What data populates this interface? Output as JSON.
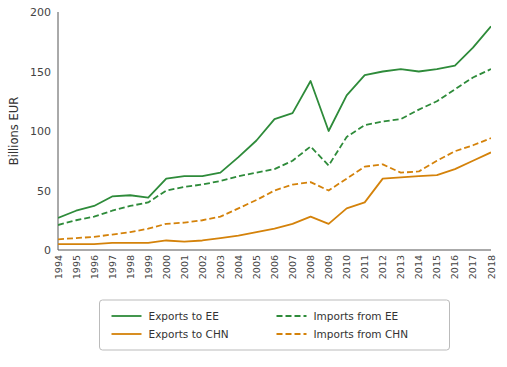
{
  "chart_data": {
    "type": "line",
    "ylabel": "Billions EUR",
    "x": [
      1994,
      1995,
      1996,
      1997,
      1998,
      1999,
      2000,
      2001,
      2002,
      2003,
      2004,
      2005,
      2006,
      2007,
      2008,
      2009,
      2010,
      2011,
      2012,
      2013,
      2014,
      2015,
      2016,
      2017,
      2018
    ],
    "xlim": [
      1994,
      2018
    ],
    "xticks": [
      1994,
      1995,
      1996,
      1997,
      1998,
      1999,
      2000,
      2001,
      2002,
      2003,
      2004,
      2005,
      2006,
      2007,
      2008,
      2009,
      2010,
      2011,
      2012,
      2013,
      2014,
      2015,
      2016,
      2017,
      2018
    ],
    "ylim": [
      0,
      200
    ],
    "yticks": [
      0,
      50,
      100,
      150,
      200
    ],
    "grid": false,
    "legend": "bottom",
    "series": [
      {
        "name": "Exports to EE",
        "color": "#2e8b3a",
        "line_style": "solid",
        "values": [
          27,
          33,
          37,
          45,
          46,
          44,
          60,
          62,
          62,
          65,
          78,
          92,
          110,
          115,
          142,
          100,
          130,
          147,
          150,
          152,
          150,
          152,
          155,
          170,
          188
        ]
      },
      {
        "name": "Imports from EE",
        "color": "#2e8b3a",
        "line_style": "dashed",
        "values": [
          21,
          25,
          28,
          33,
          37,
          40,
          50,
          53,
          55,
          58,
          62,
          65,
          68,
          75,
          87,
          71,
          95,
          105,
          108,
          110,
          118,
          125,
          135,
          145,
          152
        ]
      },
      {
        "name": "Exports to CHN",
        "color": "#d4820a",
        "line_style": "solid",
        "values": [
          5,
          5,
          5,
          6,
          6,
          6,
          8,
          7,
          8,
          10,
          12,
          15,
          18,
          22,
          28,
          22,
          35,
          40,
          60,
          61,
          62,
          63,
          68,
          75,
          82
        ]
      },
      {
        "name": "Imports from CHN",
        "color": "#d4820a",
        "line_style": "dashed",
        "values": [
          9,
          10,
          11,
          13,
          15,
          18,
          22,
          23,
          25,
          28,
          35,
          42,
          50,
          55,
          57,
          50,
          60,
          70,
          72,
          65,
          66,
          75,
          83,
          88,
          94
        ]
      }
    ]
  }
}
